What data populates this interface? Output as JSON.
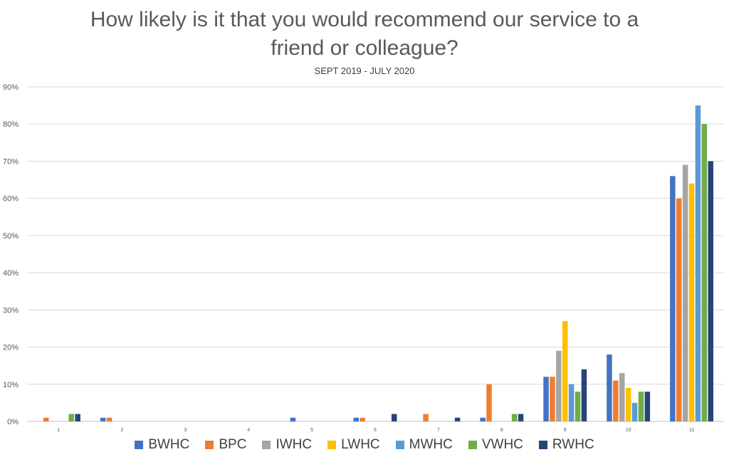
{
  "chart_data": {
    "type": "bar",
    "title_line1": "How likely is it that you would recommend our service to a",
    "title_line2": "friend or colleague?",
    "subtitle": "SEPT 2019 - JULY 2020",
    "xlabel": "",
    "ylabel": "",
    "ylim": [
      0,
      90
    ],
    "y_tick_step": 10,
    "y_tick_format": "percent",
    "grid": true,
    "legend_position": "bottom",
    "categories": [
      "1",
      "2",
      "3",
      "4",
      "5",
      "6",
      "7",
      "8",
      "9",
      "10",
      "11"
    ],
    "series": [
      {
        "name": "BWHC",
        "color": "#4472C4",
        "values": [
          0,
          1,
          0,
          0,
          1,
          1,
          0,
          1,
          12,
          18,
          66
        ]
      },
      {
        "name": "BPC",
        "color": "#ED7D31",
        "values": [
          1,
          1,
          0,
          0,
          0,
          1,
          2,
          10,
          12,
          11,
          60
        ]
      },
      {
        "name": "IWHC",
        "color": "#A5A5A5",
        "values": [
          0,
          0,
          0,
          0,
          0,
          0,
          0,
          0,
          19,
          13,
          69
        ]
      },
      {
        "name": "LWHC",
        "color": "#FFC000",
        "values": [
          0,
          0,
          0,
          0,
          0,
          0,
          0,
          0,
          27,
          9,
          64
        ]
      },
      {
        "name": "MWHC",
        "color": "#5B9BD5",
        "values": [
          0,
          0,
          0,
          0,
          0,
          0,
          0,
          0,
          10,
          5,
          85
        ]
      },
      {
        "name": "VWHC",
        "color": "#70AD47",
        "values": [
          2,
          0,
          0,
          0,
          0,
          0,
          0,
          2,
          8,
          8,
          80
        ]
      },
      {
        "name": "RWHC",
        "color": "#264478",
        "values": [
          2,
          0,
          0,
          0,
          0,
          2,
          1,
          2,
          14,
          8,
          70
        ]
      }
    ]
  }
}
